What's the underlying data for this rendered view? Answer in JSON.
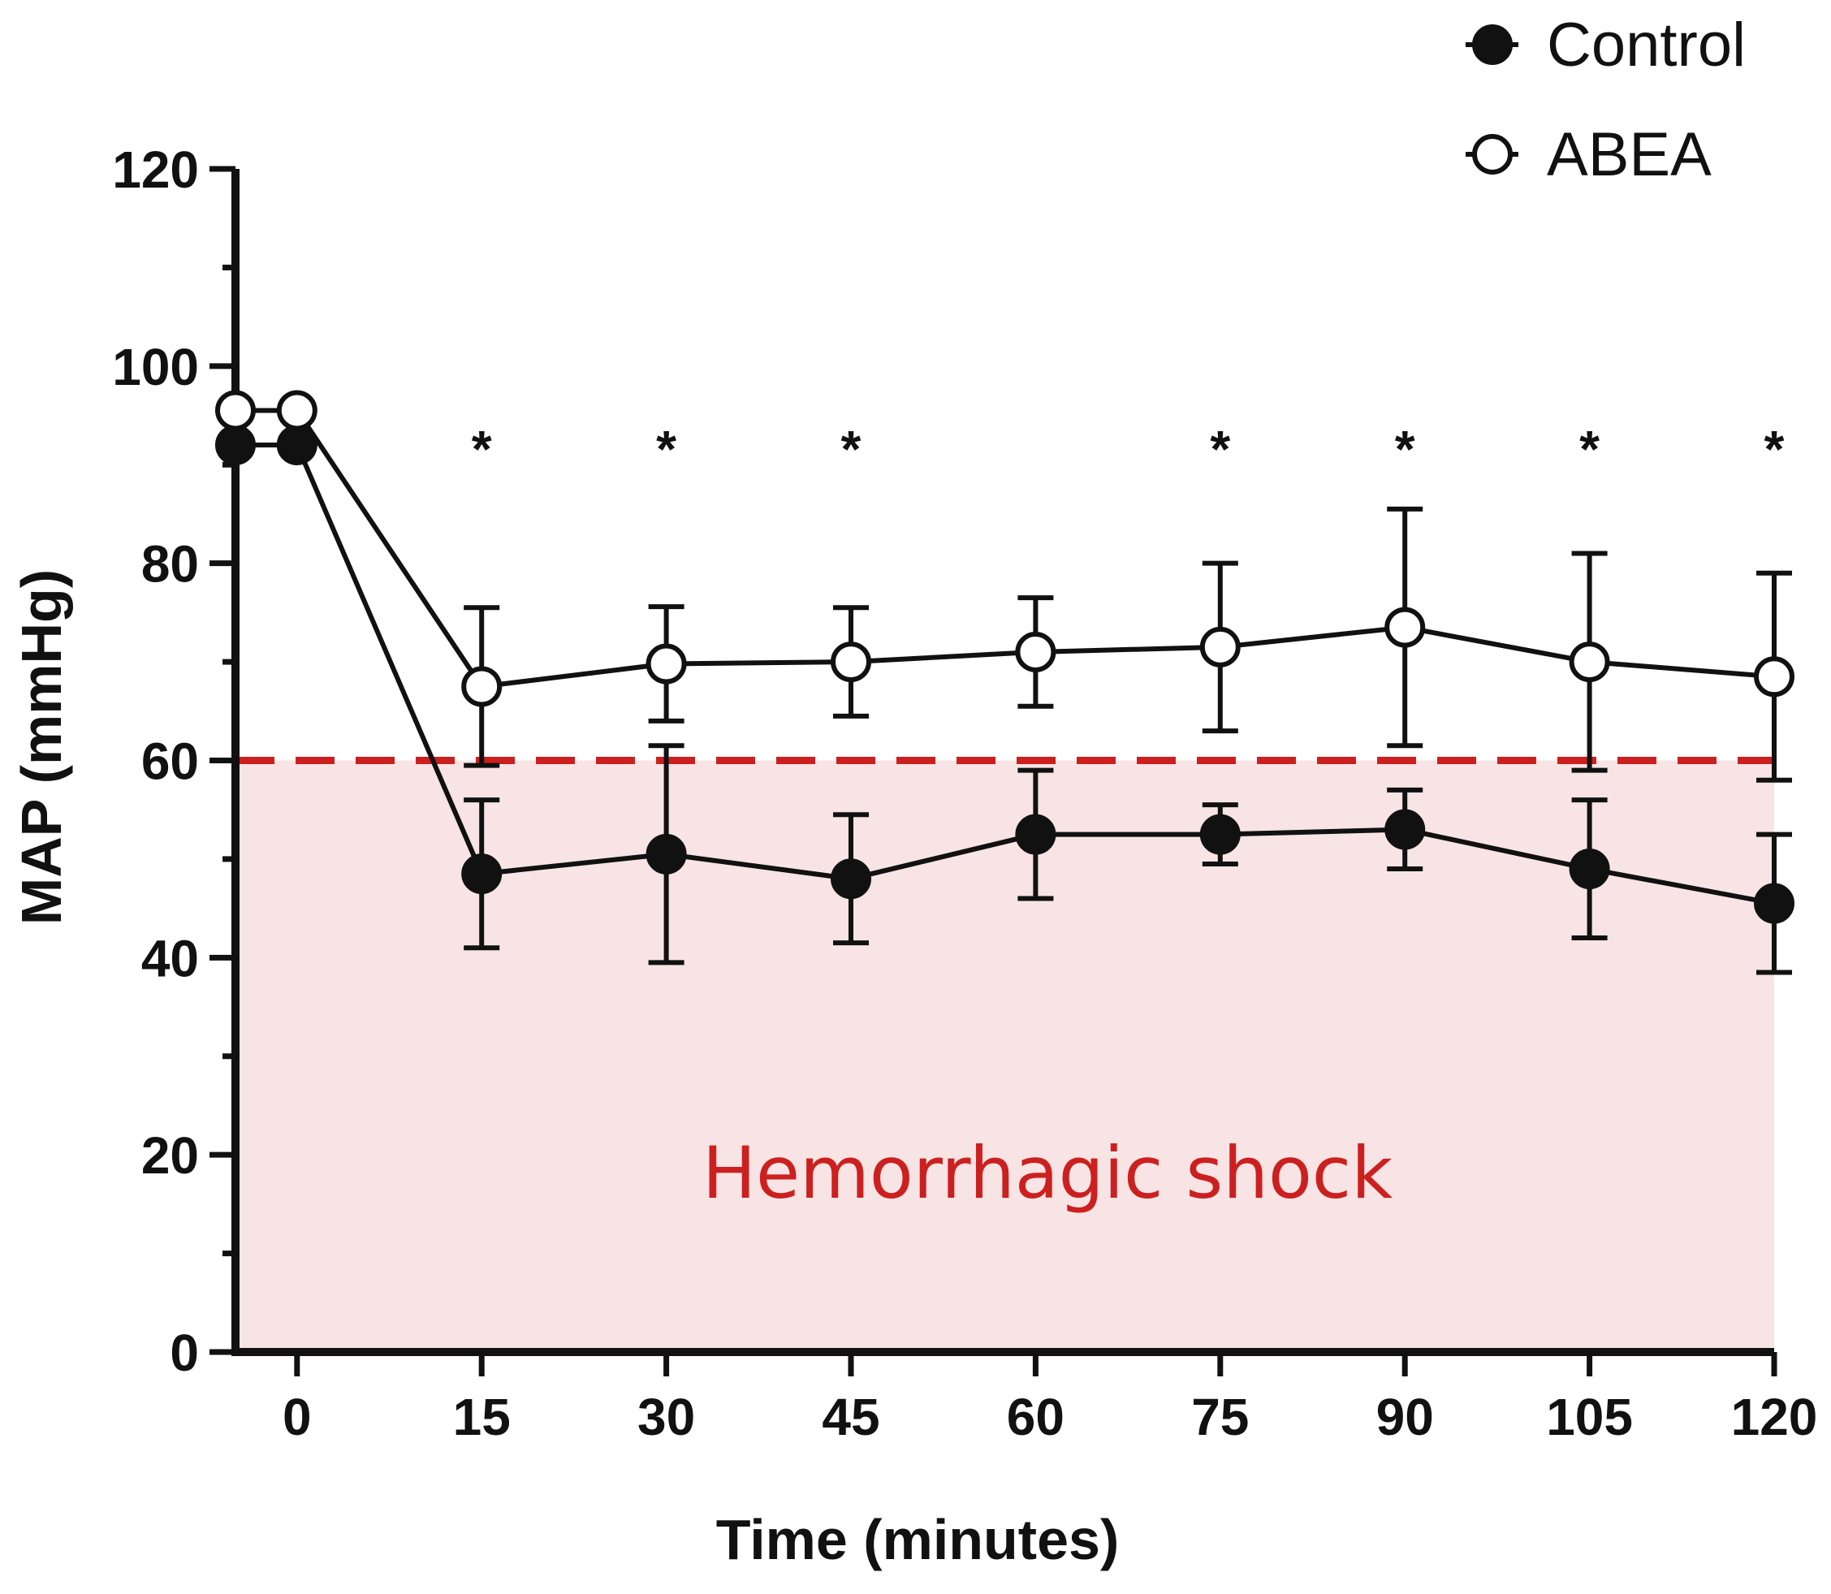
{
  "chart_data": {
    "type": "line",
    "title": "",
    "xlabel": "Time (minutes)",
    "ylabel": "MAP (mmHg)",
    "x_tick_labels": [
      "0",
      "15",
      "30",
      "45",
      "60",
      "75",
      "90",
      "105",
      "120"
    ],
    "y_tick_labels": [
      "0",
      "20",
      "40",
      "60",
      "80",
      "100",
      "120"
    ],
    "xlim": [
      -5,
      120
    ],
    "ylim": [
      0,
      120
    ],
    "x": [
      -5,
      0,
      15,
      30,
      45,
      60,
      75,
      90,
      105,
      120
    ],
    "series": [
      {
        "name": "Control",
        "marker": "filled-circle",
        "values": [
          92,
          92,
          48.5,
          50.5,
          48,
          52.5,
          52.5,
          53,
          49,
          45.5
        ],
        "error": [
          0,
          0,
          7.5,
          11,
          6.5,
          6.5,
          3,
          4,
          7,
          7
        ]
      },
      {
        "name": "ABEA",
        "marker": "open-circle",
        "values": [
          95.5,
          95.5,
          67.5,
          69.8,
          70,
          71,
          71.5,
          73.5,
          70,
          68.5
        ],
        "error": [
          0,
          0,
          8,
          5.8,
          5.5,
          5.5,
          8.5,
          12,
          11,
          10.5
        ]
      }
    ],
    "significance": {
      "symbol": "*",
      "x": [
        15,
        30,
        45,
        75,
        90,
        105,
        120
      ]
    },
    "threshold": {
      "y": 60,
      "color": "#cc2020",
      "style": "dashed"
    },
    "shaded_region": {
      "y_from": 0,
      "y_to": 60,
      "color": "#f8e4e4",
      "label": "Hemorrhagic shock",
      "label_color": "#cc2020"
    },
    "legend": {
      "position": "top-right",
      "entries": [
        "Control",
        "ABEA"
      ]
    },
    "grid": false
  }
}
